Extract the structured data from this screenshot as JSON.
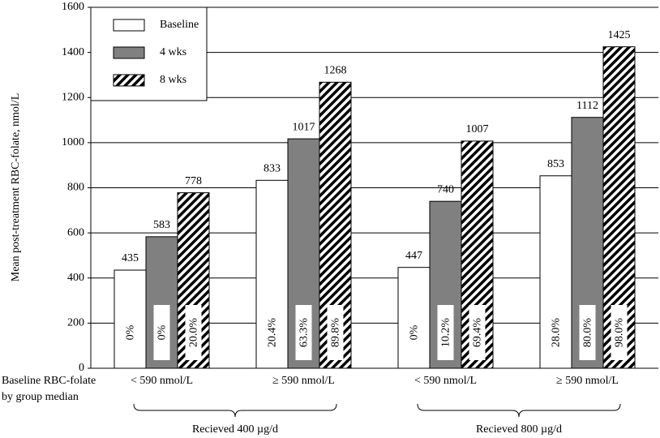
{
  "chart_data": {
    "type": "bar",
    "y_label": "Mean post-treatment RBC-folate, nmol/L",
    "category_axis_label": [
      "Baseline RBC-folate",
      "by group median"
    ],
    "categories": [
      "< 590 nmol/L",
      "≥ 590 nmol/L",
      "< 590 nmol/L",
      "≥ 590 nmol/L"
    ],
    "groups": [
      "Recieved 400 µg/d",
      "Recieved 800 µg/d"
    ],
    "series": [
      {
        "name": "Baseline",
        "color": "#ffffff",
        "values": [
          435,
          833,
          447,
          853
        ],
        "percent_labels": [
          "0%",
          "20.4%",
          "0%",
          "28.0%"
        ]
      },
      {
        "name": "4 wks",
        "color": "#808080",
        "values": [
          583,
          1017,
          740,
          1112
        ],
        "percent_labels": [
          "0%",
          "63.3%",
          "10.2%",
          "80.0%"
        ]
      },
      {
        "name": "8 wks",
        "color": "#000000",
        "pattern": "hatch",
        "values": [
          778,
          1268,
          1007,
          1425
        ],
        "percent_labels": [
          "20.0%",
          "89.8%",
          "69.4%",
          "98.0%"
        ]
      }
    ],
    "ylim": [
      0,
      1600
    ],
    "yticks": [
      0,
      200,
      400,
      600,
      800,
      1000,
      1200,
      1400,
      1600
    ],
    "grid": true,
    "legend": "upper left"
  }
}
